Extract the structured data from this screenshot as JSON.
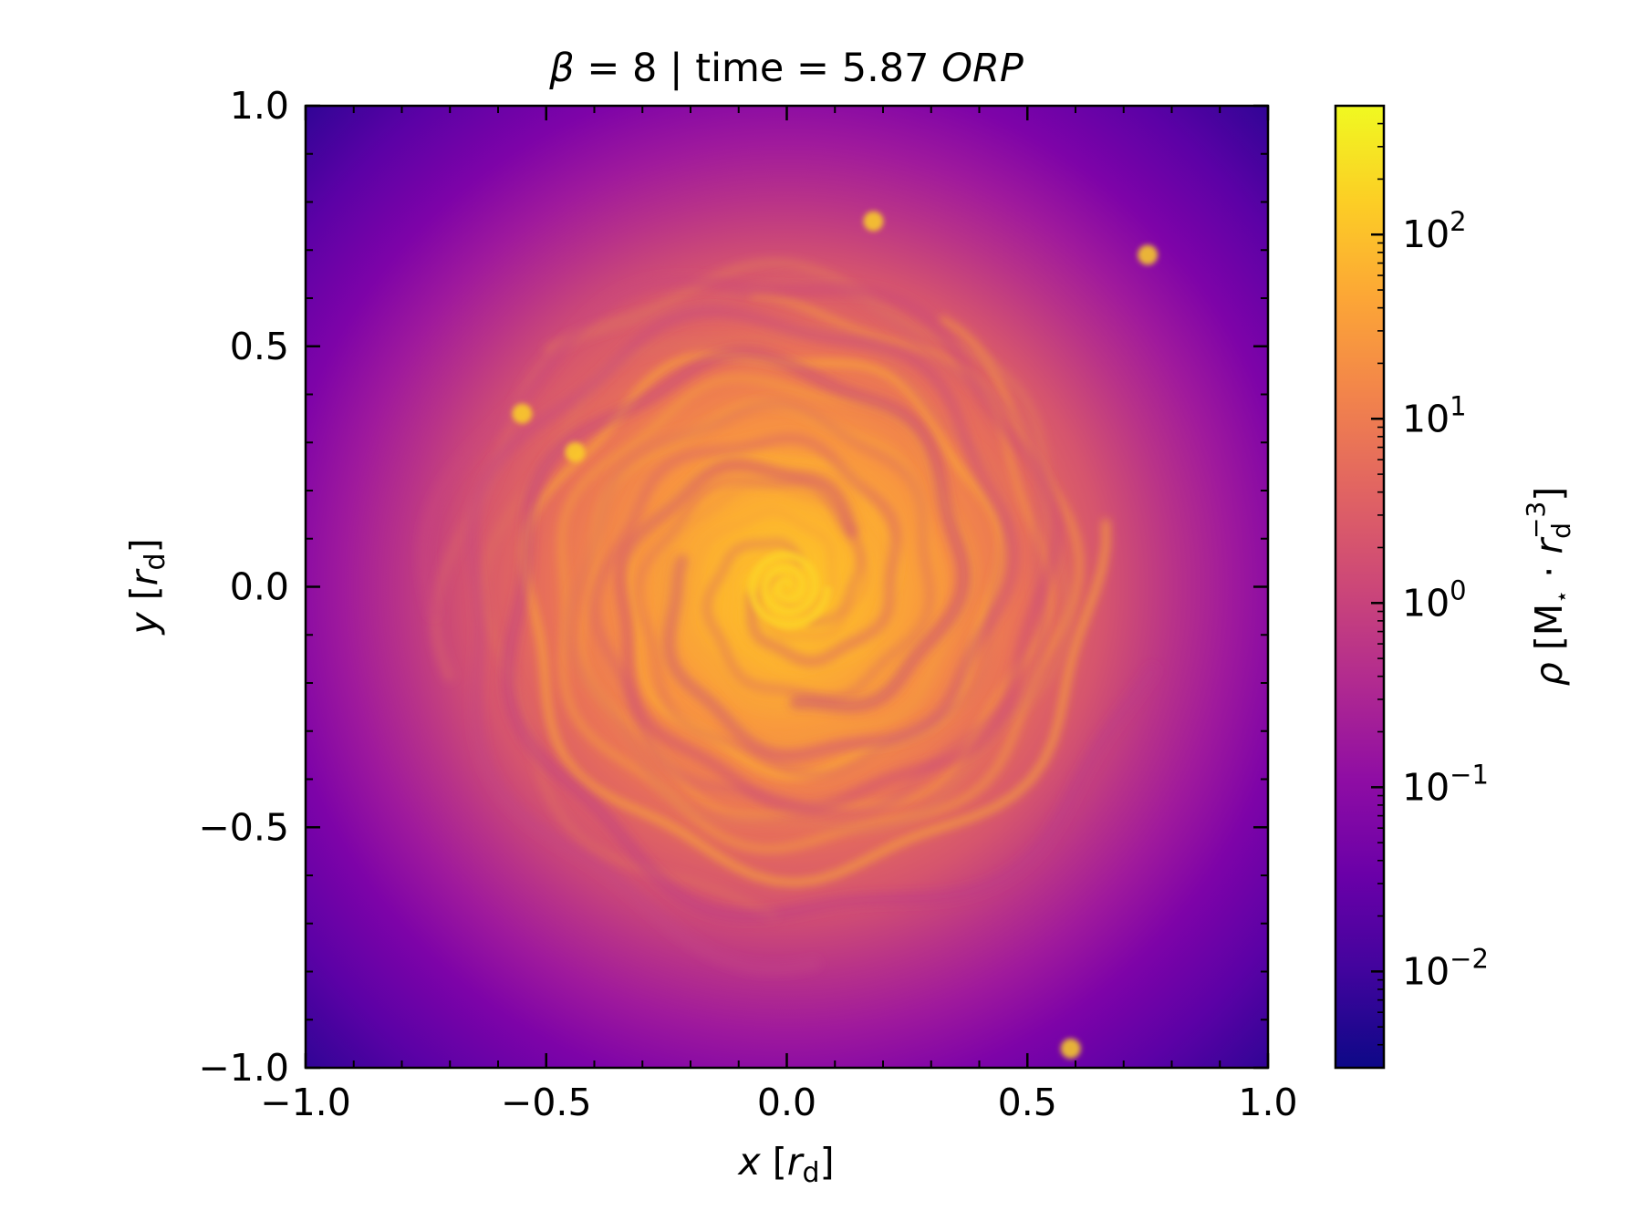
{
  "chart_data": {
    "type": "heatmap",
    "title": {
      "beta_symbol": "β",
      "beta_rest": " = 8 | time = 5.87 ",
      "unit": "ORP"
    },
    "xlabel": {
      "symbol": "x",
      "open": " [",
      "var": "r",
      "sub": "d",
      "close": "]"
    },
    "ylabel": {
      "symbol": "y",
      "open": " [",
      "var": "r",
      "sub": "d",
      "close": "]"
    },
    "xlim": [
      -1.0,
      1.0
    ],
    "ylim": [
      -1.0,
      1.0
    ],
    "x_ticks": [
      -1.0,
      -0.5,
      0.0,
      0.5,
      1.0
    ],
    "x_tick_labels": [
      "−1.0",
      "−0.5",
      "0.0",
      "0.5",
      "1.0"
    ],
    "y_ticks": [
      -1.0,
      -0.5,
      0.0,
      0.5,
      1.0
    ],
    "y_tick_labels": [
      "−1.0",
      "−0.5",
      "0.0",
      "0.5",
      "1.0"
    ],
    "colorbar": {
      "scale": "log",
      "colormap": "plasma",
      "range": [
        0.003,
        500
      ],
      "ticks": [
        0.01,
        0.1,
        1,
        10,
        100
      ],
      "tick_labels": [
        {
          "base": "10",
          "exp": "−2"
        },
        {
          "base": "10",
          "exp": "−1"
        },
        {
          "base": "10",
          "exp": "0"
        },
        {
          "base": "10",
          "exp": "1"
        },
        {
          "base": "10",
          "exp": "2"
        }
      ],
      "label": {
        "symbol": "ρ",
        "open": " [M",
        "star": "⋆",
        "dot": " · ",
        "var": "r",
        "sub": "d",
        "sup": "−3",
        "close": "]"
      }
    },
    "features": {
      "structure": "spiral density field of a disk",
      "peak_location": [
        0.0,
        0.0
      ],
      "clumps": [
        {
          "x": 0.59,
          "y": -0.96
        },
        {
          "x": 0.75,
          "y": 0.69
        },
        {
          "x": 0.18,
          "y": 0.76
        },
        {
          "x": -0.44,
          "y": 0.28
        },
        {
          "x": -0.55,
          "y": 0.36
        }
      ]
    }
  }
}
